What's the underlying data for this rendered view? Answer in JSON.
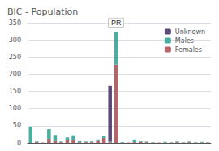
{
  "chart_data": {
    "type": "bar",
    "title": "BIC - Population",
    "stacked": true,
    "categories": [
      null,
      null,
      null,
      null,
      null,
      null,
      null,
      null,
      null,
      null,
      null,
      null,
      null,
      null,
      null,
      null,
      null,
      null,
      null,
      null,
      null,
      null,
      null,
      null,
      null,
      null,
      null,
      null,
      null,
      null
    ],
    "series": [
      {
        "name": "Females",
        "color": "#b56468",
        "values": [
          0,
          2,
          1,
          12,
          5,
          2,
          8,
          8,
          2,
          2,
          2,
          6,
          14,
          2,
          228,
          0,
          1,
          2,
          3,
          2,
          1,
          1,
          1,
          1,
          2,
          1,
          2,
          1,
          1,
          1
        ]
      },
      {
        "name": "Males",
        "color": "#4aada0",
        "values": [
          47,
          2,
          0,
          28,
          18,
          2,
          8,
          14,
          3,
          2,
          2,
          4,
          5,
          2,
          95,
          2,
          0,
          8,
          2,
          2,
          1,
          0,
          2,
          1,
          2,
          1,
          2,
          1,
          2,
          1
        ]
      },
      {
        "name": "Unknown",
        "color": "#5a4a78",
        "values": [
          0,
          0,
          0,
          0,
          0,
          0,
          0,
          0,
          0,
          0,
          0,
          0,
          0,
          162,
          0,
          0,
          0,
          0,
          0,
          0,
          0,
          0,
          0,
          0,
          0,
          0,
          0,
          0,
          0,
          0
        ]
      }
    ],
    "annotations": [
      {
        "text": "PR",
        "x": 14
      }
    ],
    "ylim": [
      0,
      350
    ],
    "yticks": [
      0,
      50,
      100,
      150,
      200,
      250,
      300,
      350
    ],
    "grid": true,
    "legend": "upper right",
    "tick_labels": "y"
  }
}
